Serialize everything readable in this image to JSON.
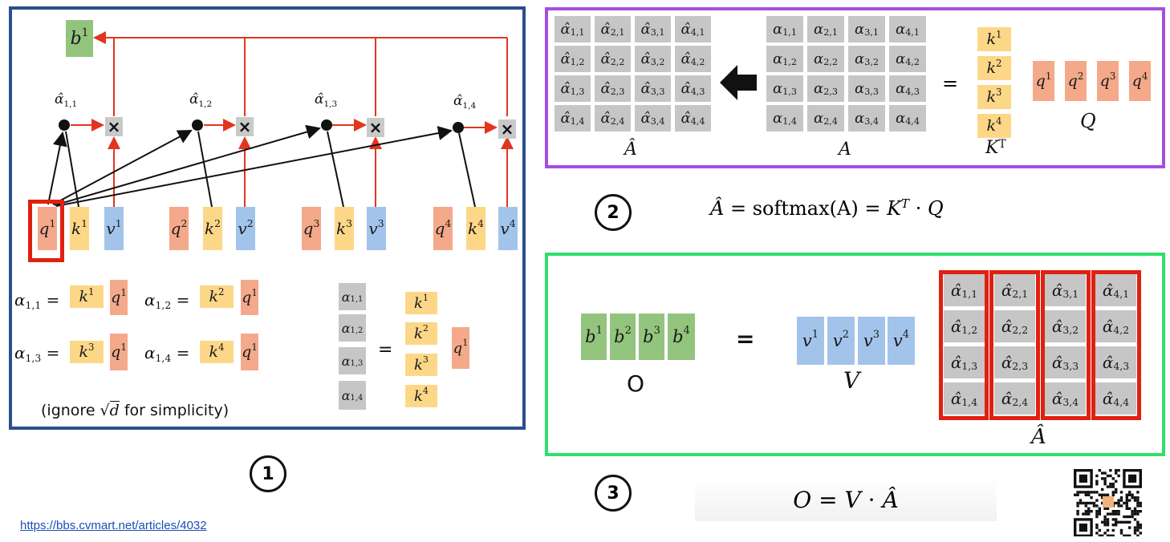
{
  "panel1": {
    "number": "1",
    "b": "b",
    "b_sup": "1",
    "alpha_labels": [
      {
        "base": "α̂",
        "sub": "1,1"
      },
      {
        "base": "α̂",
        "sub": "1,2"
      },
      {
        "base": "α̂",
        "sub": "1,3"
      },
      {
        "base": "α̂",
        "sub": "1,4"
      }
    ],
    "x_sign": "×",
    "vectors": [
      {
        "q": "q",
        "k": "k",
        "v": "v",
        "sup": "1"
      },
      {
        "q": "q",
        "k": "k",
        "v": "v",
        "sup": "2"
      },
      {
        "q": "q",
        "k": "k",
        "v": "v",
        "sup": "3"
      },
      {
        "q": "q",
        "k": "k",
        "v": "v",
        "sup": "4"
      }
    ],
    "equations": [
      {
        "lhs": "α",
        "sub": "1,1",
        "eq": "=",
        "k": "k",
        "ksup": "1",
        "q": "q",
        "qsup": "1"
      },
      {
        "lhs": "α",
        "sub": "1,2",
        "eq": "=",
        "k": "k",
        "ksup": "2",
        "q": "q",
        "qsup": "1"
      },
      {
        "lhs": "α",
        "sub": "1,3",
        "eq": "=",
        "k": "k",
        "ksup": "3",
        "q": "q",
        "qsup": "1"
      },
      {
        "lhs": "α",
        "sub": "1,4",
        "eq": "=",
        "k": "k",
        "ksup": "4",
        "q": "q",
        "qsup": "1"
      }
    ],
    "col_alpha": [
      {
        "base": "α",
        "sub": "1,1"
      },
      {
        "base": "α",
        "sub": "1,2"
      },
      {
        "base": "α",
        "sub": "1,3"
      },
      {
        "base": "α",
        "sub": "1,4"
      }
    ],
    "col_eq": "=",
    "col_k": [
      {
        "base": "k",
        "sup": "1"
      },
      {
        "base": "k",
        "sup": "2"
      },
      {
        "base": "k",
        "sup": "3"
      },
      {
        "base": "k",
        "sup": "4"
      }
    ],
    "col_q": {
      "base": "q",
      "sup": "1"
    },
    "note_prefix": "(ignore ",
    "note_root": "√",
    "note_d": "d",
    "note_suffix": " for simplicity)"
  },
  "panel2": {
    "number": "2",
    "ahat_matrix": [
      [
        "1,1",
        "2,1",
        "3,1",
        "4,1"
      ],
      [
        "1,2",
        "2,2",
        "3,2",
        "4,2"
      ],
      [
        "1,3",
        "2,3",
        "3,3",
        "4,3"
      ],
      [
        "1,4",
        "2,4",
        "3,4",
        "4,4"
      ]
    ],
    "ahat_label": "Â",
    "a_label": "A",
    "eq": "=",
    "kt_label": "K",
    "kt_sup": "T",
    "q_label": "Q",
    "k_items": [
      {
        "base": "k",
        "sup": "1"
      },
      {
        "base": "k",
        "sup": "2"
      },
      {
        "base": "k",
        "sup": "3"
      },
      {
        "base": "k",
        "sup": "4"
      }
    ],
    "q_items": [
      {
        "base": "q",
        "sup": "1"
      },
      {
        "base": "q",
        "sup": "2"
      },
      {
        "base": "q",
        "sup": "3"
      },
      {
        "base": "q",
        "sup": "4"
      }
    ],
    "formula": {
      "lhs": "Â",
      "eq1": "=",
      "fn": "softmax",
      "arg": "(A)",
      "eq2": "=",
      "k": "K",
      "ksup": "T",
      "dot": "·",
      "q": "Q"
    }
  },
  "panel3": {
    "number": "3",
    "b_items": [
      {
        "base": "b",
        "sup": "1"
      },
      {
        "base": "b",
        "sup": "2"
      },
      {
        "base": "b",
        "sup": "3"
      },
      {
        "base": "b",
        "sup": "4"
      }
    ],
    "o_label": "O",
    "eq": "=",
    "v_items": [
      {
        "base": "v",
        "sup": "1"
      },
      {
        "base": "v",
        "sup": "2"
      },
      {
        "base": "v",
        "sup": "3"
      },
      {
        "base": "v",
        "sup": "4"
      }
    ],
    "v_label": "V",
    "ahat_label": "Â",
    "formula": {
      "lhs": "O",
      "eq": "=",
      "v": "V",
      "dot": "·",
      "ahat": "Â"
    }
  },
  "link": "https://bbs.cvmart.net/articles/4032",
  "colors": {
    "panel1_border": "#2b4f8e",
    "panel2_border": "#a64ee3",
    "panel3_border": "#2ee06a",
    "red": "#e02010",
    "arrow_red": "#e2351f"
  }
}
